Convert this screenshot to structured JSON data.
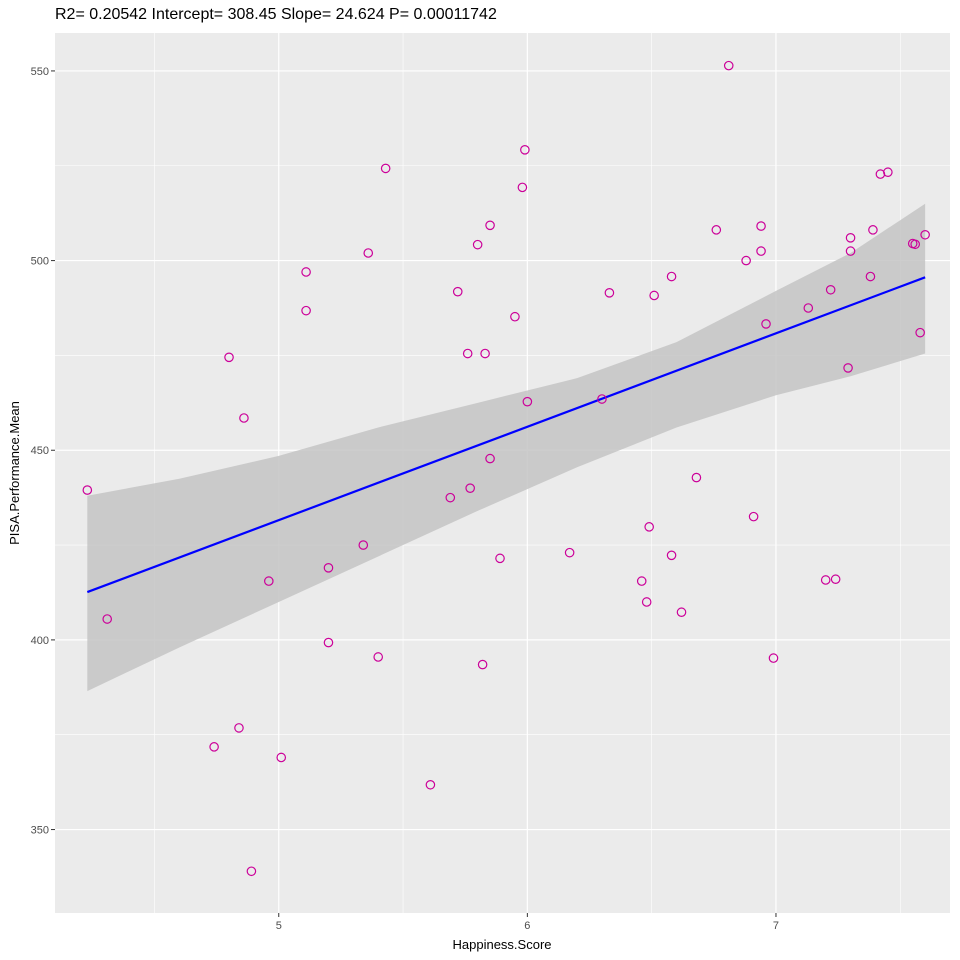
{
  "chart_data": {
    "type": "scatter",
    "title": "R2= 0.20542 Intercept= 308.45 Slope= 24.624 P= 0.00011742",
    "xlabel": "Happiness.Score",
    "ylabel": "PISA.Performance.Mean",
    "xlim": [
      4.1,
      7.7
    ],
    "ylim": [
      328,
      560
    ],
    "x_ticks": [
      5,
      6,
      7
    ],
    "y_ticks": [
      350,
      400,
      450,
      500,
      550
    ],
    "grid": true,
    "colors": {
      "panel": "#ebebeb",
      "grid_major": "#ffffff",
      "points": "#cc0099",
      "fit_line": "#0000ff",
      "ribbon": "#c4c4c4"
    },
    "points": [
      {
        "x": 4.23,
        "y": 439.5
      },
      {
        "x": 4.31,
        "y": 405.5
      },
      {
        "x": 4.74,
        "y": 371.8
      },
      {
        "x": 4.8,
        "y": 474.5
      },
      {
        "x": 4.84,
        "y": 376.8
      },
      {
        "x": 4.86,
        "y": 458.5
      },
      {
        "x": 4.89,
        "y": 339.0
      },
      {
        "x": 4.96,
        "y": 415.5
      },
      {
        "x": 5.01,
        "y": 369.0
      },
      {
        "x": 5.11,
        "y": 486.8
      },
      {
        "x": 5.11,
        "y": 497.0
      },
      {
        "x": 5.2,
        "y": 419.0
      },
      {
        "x": 5.2,
        "y": 399.3
      },
      {
        "x": 5.34,
        "y": 425.0
      },
      {
        "x": 5.36,
        "y": 502.0
      },
      {
        "x": 5.4,
        "y": 395.5
      },
      {
        "x": 5.43,
        "y": 524.3
      },
      {
        "x": 5.61,
        "y": 361.8
      },
      {
        "x": 5.69,
        "y": 437.5
      },
      {
        "x": 5.72,
        "y": 491.8
      },
      {
        "x": 5.76,
        "y": 475.5
      },
      {
        "x": 5.77,
        "y": 440.0
      },
      {
        "x": 5.8,
        "y": 504.2
      },
      {
        "x": 5.82,
        "y": 393.5
      },
      {
        "x": 5.83,
        "y": 475.5
      },
      {
        "x": 5.85,
        "y": 447.8
      },
      {
        "x": 5.85,
        "y": 509.3
      },
      {
        "x": 5.89,
        "y": 421.5
      },
      {
        "x": 5.95,
        "y": 485.2
      },
      {
        "x": 5.98,
        "y": 519.3
      },
      {
        "x": 5.99,
        "y": 529.2
      },
      {
        "x": 6.0,
        "y": 462.8
      },
      {
        "x": 6.17,
        "y": 423.0
      },
      {
        "x": 6.3,
        "y": 463.5
      },
      {
        "x": 6.33,
        "y": 491.5
      },
      {
        "x": 6.46,
        "y": 415.5
      },
      {
        "x": 6.48,
        "y": 410.0
      },
      {
        "x": 6.49,
        "y": 429.8
      },
      {
        "x": 6.51,
        "y": 490.8
      },
      {
        "x": 6.58,
        "y": 422.3
      },
      {
        "x": 6.58,
        "y": 495.8
      },
      {
        "x": 6.62,
        "y": 407.3
      },
      {
        "x": 6.68,
        "y": 442.8
      },
      {
        "x": 6.76,
        "y": 508.1
      },
      {
        "x": 6.81,
        "y": 551.4
      },
      {
        "x": 6.88,
        "y": 500.0
      },
      {
        "x": 6.91,
        "y": 432.5
      },
      {
        "x": 6.94,
        "y": 509.1
      },
      {
        "x": 6.94,
        "y": 502.5
      },
      {
        "x": 6.96,
        "y": 483.3
      },
      {
        "x": 6.99,
        "y": 395.2
      },
      {
        "x": 7.13,
        "y": 487.5
      },
      {
        "x": 7.2,
        "y": 415.8
      },
      {
        "x": 7.22,
        "y": 492.3
      },
      {
        "x": 7.24,
        "y": 416.0
      },
      {
        "x": 7.29,
        "y": 471.7
      },
      {
        "x": 7.3,
        "y": 506.0
      },
      {
        "x": 7.3,
        "y": 502.5
      },
      {
        "x": 7.38,
        "y": 495.8
      },
      {
        "x": 7.39,
        "y": 508.1
      },
      {
        "x": 7.42,
        "y": 522.8
      },
      {
        "x": 7.45,
        "y": 523.3
      },
      {
        "x": 7.55,
        "y": 504.5
      },
      {
        "x": 7.56,
        "y": 504.3
      },
      {
        "x": 7.58,
        "y": 481.0
      },
      {
        "x": 7.6,
        "y": 506.8
      }
    ],
    "fit": {
      "x_range": [
        4.23,
        7.6
      ],
      "intercept": 308.45,
      "slope": 24.624,
      "ribbon": [
        {
          "x": 4.23,
          "lower": 386.5,
          "upper": 438.0
        },
        {
          "x": 4.6,
          "lower": 398.0,
          "upper": 442.5
        },
        {
          "x": 5.0,
          "lower": 410.0,
          "upper": 448.5
        },
        {
          "x": 5.4,
          "lower": 422.0,
          "upper": 456.0
        },
        {
          "x": 5.8,
          "lower": 434.0,
          "upper": 462.5
        },
        {
          "x": 6.2,
          "lower": 445.5,
          "upper": 469.0
        },
        {
          "x": 6.6,
          "lower": 456.0,
          "upper": 478.5
        },
        {
          "x": 7.0,
          "lower": 464.5,
          "upper": 492.0
        },
        {
          "x": 7.3,
          "lower": 469.5,
          "upper": 502.0
        },
        {
          "x": 7.6,
          "lower": 475.5,
          "upper": 515.0
        }
      ]
    }
  }
}
